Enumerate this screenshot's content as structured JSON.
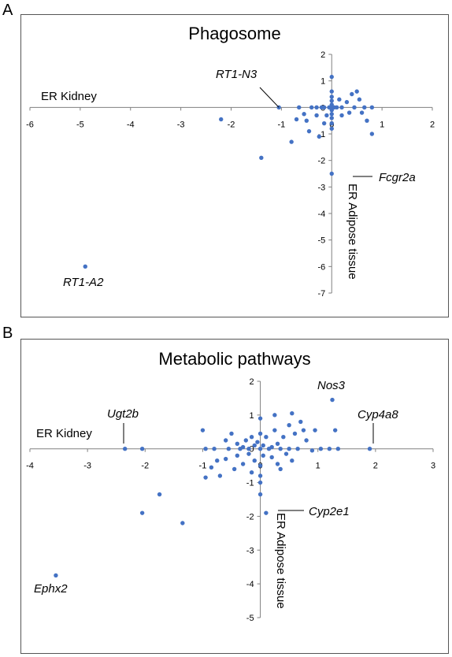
{
  "panels": [
    {
      "letter": "A"
    },
    {
      "letter": "B"
    }
  ],
  "chart_data": [
    {
      "type": "scatter",
      "title": "Phagosome",
      "xlabel": "ER Kidney",
      "ylabel": "ER Adipose tissue",
      "xlim": [
        -6,
        2
      ],
      "ylim": [
        -7,
        2
      ],
      "xticks": [
        -6,
        -5,
        -4,
        -3,
        -2,
        -1,
        0,
        1,
        2
      ],
      "yticks": [
        -7,
        -6,
        -5,
        -4,
        -3,
        -2,
        -1,
        0,
        1,
        2
      ],
      "grid": false,
      "color": "#4472c4",
      "points": [
        [
          -4.9,
          -6.0
        ],
        [
          -2.2,
          -0.45
        ],
        [
          -1.4,
          -1.9
        ],
        [
          -1.05,
          0.0
        ],
        [
          -0.8,
          -1.3
        ],
        [
          -0.7,
          -0.45
        ],
        [
          -0.65,
          0.0
        ],
        [
          -0.55,
          -0.25
        ],
        [
          -0.5,
          -0.5
        ],
        [
          -0.45,
          -0.9
        ],
        [
          -0.4,
          0.0
        ],
        [
          -0.3,
          -0.3
        ],
        [
          -0.25,
          -1.1
        ],
        [
          -0.2,
          0.0
        ],
        [
          -0.15,
          -0.6
        ],
        [
          -0.1,
          -0.3
        ],
        [
          -0.05,
          0.0
        ],
        [
          0.0,
          1.15
        ],
        [
          0.0,
          0.6
        ],
        [
          0.0,
          0.4
        ],
        [
          0.0,
          0.25
        ],
        [
          0.0,
          0.1
        ],
        [
          0.0,
          0.0
        ],
        [
          0.0,
          -0.1
        ],
        [
          0.0,
          -0.25
        ],
        [
          0.0,
          -0.4
        ],
        [
          0.0,
          -0.6
        ],
        [
          0.0,
          -0.8
        ],
        [
          0.0,
          -2.5
        ],
        [
          0.1,
          0.0
        ],
        [
          0.2,
          0.0
        ],
        [
          0.15,
          0.3
        ],
        [
          0.2,
          -0.3
        ],
        [
          0.3,
          0.2
        ],
        [
          0.35,
          -0.2
        ],
        [
          0.4,
          0.5
        ],
        [
          0.45,
          0.0
        ],
        [
          0.5,
          0.6
        ],
        [
          0.55,
          0.3
        ],
        [
          0.6,
          -0.2
        ],
        [
          0.65,
          0.0
        ],
        [
          0.7,
          -0.5
        ],
        [
          0.8,
          0.0
        ],
        [
          0.8,
          -1.0
        ],
        [
          -0.15,
          0.0
        ],
        [
          0.05,
          0.0
        ],
        [
          -0.3,
          0.0
        ]
      ],
      "annotations": [
        {
          "label": "RT1-N3",
          "x": -1.05,
          "y": 0.0
        },
        {
          "label": "Fcgr2a",
          "x": 0.0,
          "y": -2.5
        },
        {
          "label": "RT1-A2",
          "x": -4.9,
          "y": -6.0
        }
      ]
    },
    {
      "type": "scatter",
      "title": "Metabolic pathways",
      "xlabel": "ER Kidney",
      "ylabel": "ER Adipose tissue",
      "xlim": [
        -4,
        3
      ],
      "ylim": [
        -5,
        2
      ],
      "xticks": [
        -4,
        -3,
        -2,
        -1,
        0,
        1,
        2,
        3
      ],
      "yticks": [
        -5,
        -4,
        -3,
        -2,
        -1,
        0,
        1,
        2
      ],
      "grid": false,
      "color": "#4472c4",
      "points": [
        [
          -3.55,
          -3.75
        ],
        [
          -2.35,
          0.0
        ],
        [
          -2.05,
          0.0
        ],
        [
          -2.05,
          -1.9
        ],
        [
          -1.75,
          -1.35
        ],
        [
          -1.35,
          -2.2
        ],
        [
          -1.0,
          0.55
        ],
        [
          -0.95,
          0.0
        ],
        [
          -0.95,
          -0.85
        ],
        [
          -0.85,
          -0.55
        ],
        [
          -0.8,
          0.0
        ],
        [
          -0.75,
          -0.35
        ],
        [
          -0.7,
          -0.8
        ],
        [
          -0.6,
          0.25
        ],
        [
          -0.6,
          -0.3
        ],
        [
          -0.55,
          0.0
        ],
        [
          -0.5,
          0.45
        ],
        [
          -0.45,
          -0.6
        ],
        [
          -0.4,
          0.15
        ],
        [
          -0.4,
          -0.2
        ],
        [
          -0.35,
          0.0
        ],
        [
          -0.3,
          -0.45
        ],
        [
          -0.25,
          0.25
        ],
        [
          -0.2,
          0.0
        ],
        [
          -0.2,
          -0.15
        ],
        [
          -0.15,
          0.35
        ],
        [
          -0.15,
          -0.7
        ],
        [
          -0.1,
          0.1
        ],
        [
          -0.1,
          -0.35
        ],
        [
          -0.05,
          0.2
        ],
        [
          0.0,
          0.9
        ],
        [
          0.0,
          0.45
        ],
        [
          0.0,
          0.0
        ],
        [
          0.0,
          -0.5
        ],
        [
          0.0,
          -0.8
        ],
        [
          0.0,
          -1.0
        ],
        [
          0.0,
          -1.35
        ],
        [
          0.05,
          0.1
        ],
        [
          0.05,
          -0.2
        ],
        [
          0.1,
          0.35
        ],
        [
          0.1,
          -1.9
        ],
        [
          0.15,
          0.0
        ],
        [
          0.2,
          -0.25
        ],
        [
          0.25,
          0.55
        ],
        [
          0.25,
          1.0
        ],
        [
          0.3,
          0.15
        ],
        [
          0.3,
          -0.45
        ],
        [
          0.35,
          0.0
        ],
        [
          0.35,
          -0.6
        ],
        [
          0.4,
          0.35
        ],
        [
          0.45,
          -0.15
        ],
        [
          0.5,
          0.7
        ],
        [
          0.5,
          0.0
        ],
        [
          0.55,
          -0.35
        ],
        [
          0.55,
          1.05
        ],
        [
          0.6,
          0.45
        ],
        [
          0.65,
          0.0
        ],
        [
          0.7,
          0.8
        ],
        [
          0.75,
          0.55
        ],
        [
          0.8,
          0.25
        ],
        [
          0.9,
          -0.05
        ],
        [
          0.95,
          0.55
        ],
        [
          1.05,
          0.0
        ],
        [
          1.2,
          0.0
        ],
        [
          1.25,
          1.45
        ],
        [
          1.3,
          0.55
        ],
        [
          1.35,
          0.0
        ],
        [
          1.9,
          0.0
        ],
        [
          -0.3,
          0.05
        ],
        [
          0.2,
          0.05
        ]
      ],
      "annotations": [
        {
          "label": "Ugt2b",
          "x": -2.35,
          "y": 0.0
        },
        {
          "label": "Nos3",
          "x": 1.25,
          "y": 1.45
        },
        {
          "label": "Cyp4a8",
          "x": 1.9,
          "y": 0.0
        },
        {
          "label": "Cyp2e1",
          "x": 0.1,
          "y": -1.9
        },
        {
          "label": "Ephx2",
          "x": -3.55,
          "y": -3.75
        }
      ]
    }
  ]
}
